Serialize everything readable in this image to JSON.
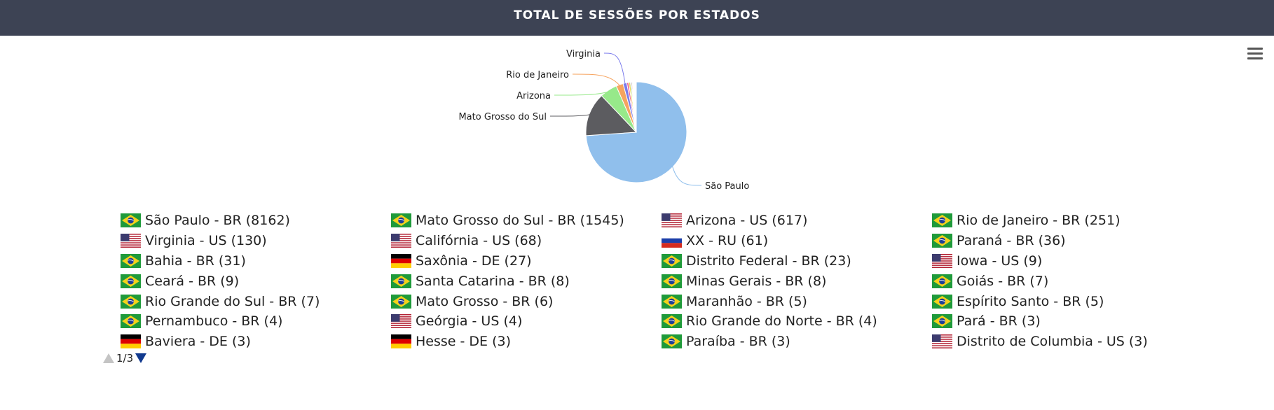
{
  "header": {
    "title": "TOTAL DE SESSÕES POR ESTADOS"
  },
  "menu": {
    "icon": "hamburger-menu-icon"
  },
  "chart_data": {
    "type": "pie",
    "title": "TOTAL DE SESSÕES POR ESTADOS",
    "slices": [
      {
        "label": "São Paulo",
        "value": 8162,
        "color": "#90bfec"
      },
      {
        "label": "Mato Grosso do Sul",
        "value": 1545,
        "color": "#5c5c60"
      },
      {
        "label": "Arizona",
        "value": 617,
        "color": "#97e98a"
      },
      {
        "label": "Rio de Janeiro",
        "value": 251,
        "color": "#f6a460"
      },
      {
        "label": "Virginia",
        "value": 130,
        "color": "#7a7bec"
      },
      {
        "label": "Califórnia",
        "value": 68,
        "color": "#ef5a86"
      },
      {
        "label": "XX",
        "value": 61,
        "color": "#e5d94d"
      },
      {
        "label": "Paraná",
        "value": 36,
        "color": "#2d8f8e"
      },
      {
        "label": "Bahia",
        "value": 31,
        "color": "#ec5a5a"
      },
      {
        "label": "Saxônia",
        "value": 27,
        "color": "#8ee4de"
      },
      {
        "label": "Distrito Federal",
        "value": 23,
        "color": "#90bfec"
      },
      {
        "label": "Iowa",
        "value": 9,
        "color": "#5c5c60"
      },
      {
        "label": "Ceará",
        "value": 9,
        "color": "#97e98a"
      },
      {
        "label": "Santa Catarina",
        "value": 8,
        "color": "#f6a460"
      },
      {
        "label": "Minas Gerais",
        "value": 8,
        "color": "#7a7bec"
      },
      {
        "label": "Goiás",
        "value": 7,
        "color": "#ef5a86"
      },
      {
        "label": "Rio Grande do Sul",
        "value": 7,
        "color": "#e5d94d"
      },
      {
        "label": "Mato Grosso",
        "value": 6,
        "color": "#2d8f8e"
      },
      {
        "label": "Maranhão",
        "value": 5,
        "color": "#ec5a5a"
      },
      {
        "label": "Espírito Santo",
        "value": 5,
        "color": "#8ee4de"
      },
      {
        "label": "Pernambuco",
        "value": 4,
        "color": "#90bfec"
      },
      {
        "label": "Geórgia",
        "value": 4,
        "color": "#5c5c60"
      },
      {
        "label": "Rio Grande do Norte",
        "value": 4,
        "color": "#97e98a"
      },
      {
        "label": "Pará",
        "value": 3,
        "color": "#f6a460"
      },
      {
        "label": "Baviera",
        "value": 3,
        "color": "#7a7bec"
      },
      {
        "label": "Hesse",
        "value": 3,
        "color": "#ef5a86"
      },
      {
        "label": "Paraíba",
        "value": 3,
        "color": "#e5d94d"
      },
      {
        "label": "Distrito de Columbia",
        "value": 3,
        "color": "#2d8f8e"
      }
    ],
    "labeled_slices": [
      "São Paulo",
      "Mato Grosso do Sul",
      "Arizona",
      "Rio de Janeiro",
      "Virginia"
    ],
    "legend": [
      {
        "text": "São Paulo - BR (8162)",
        "flag": "br"
      },
      {
        "text": "Mato Grosso do Sul - BR (1545)",
        "flag": "br"
      },
      {
        "text": "Arizona - US (617)",
        "flag": "us"
      },
      {
        "text": "Rio de Janeiro - BR (251)",
        "flag": "br"
      },
      {
        "text": "Virginia - US (130)",
        "flag": "us"
      },
      {
        "text": "Califórnia - US (68)",
        "flag": "us"
      },
      {
        "text": "XX - RU (61)",
        "flag": "ru"
      },
      {
        "text": "Paraná - BR (36)",
        "flag": "br"
      },
      {
        "text": "Bahia - BR (31)",
        "flag": "br"
      },
      {
        "text": "Saxônia - DE (27)",
        "flag": "de"
      },
      {
        "text": "Distrito Federal - BR (23)",
        "flag": "br"
      },
      {
        "text": "Iowa - US (9)",
        "flag": "us"
      },
      {
        "text": "Ceará - BR (9)",
        "flag": "br"
      },
      {
        "text": "Santa Catarina - BR (8)",
        "flag": "br"
      },
      {
        "text": "Minas Gerais - BR (8)",
        "flag": "br"
      },
      {
        "text": "Goiás - BR (7)",
        "flag": "br"
      },
      {
        "text": "Rio Grande do Sul - BR (7)",
        "flag": "br"
      },
      {
        "text": "Mato Grosso - BR (6)",
        "flag": "br"
      },
      {
        "text": "Maranhão - BR (5)",
        "flag": "br"
      },
      {
        "text": "Espírito Santo - BR (5)",
        "flag": "br"
      },
      {
        "text": "Pernambuco - BR (4)",
        "flag": "br"
      },
      {
        "text": "Geórgia - US (4)",
        "flag": "us"
      },
      {
        "text": "Rio Grande do Norte - BR (4)",
        "flag": "br"
      },
      {
        "text": "Pará - BR (3)",
        "flag": "br"
      },
      {
        "text": "Baviera - DE (3)",
        "flag": "de"
      },
      {
        "text": "Hesse - DE (3)",
        "flag": "de"
      },
      {
        "text": "Paraíba - BR (3)",
        "flag": "br"
      },
      {
        "text": "Distrito de Columbia - US (3)",
        "flag": "us"
      }
    ],
    "legend_placement": "bottom"
  },
  "pager": {
    "text": "1/3",
    "current": 1,
    "total": 3
  }
}
